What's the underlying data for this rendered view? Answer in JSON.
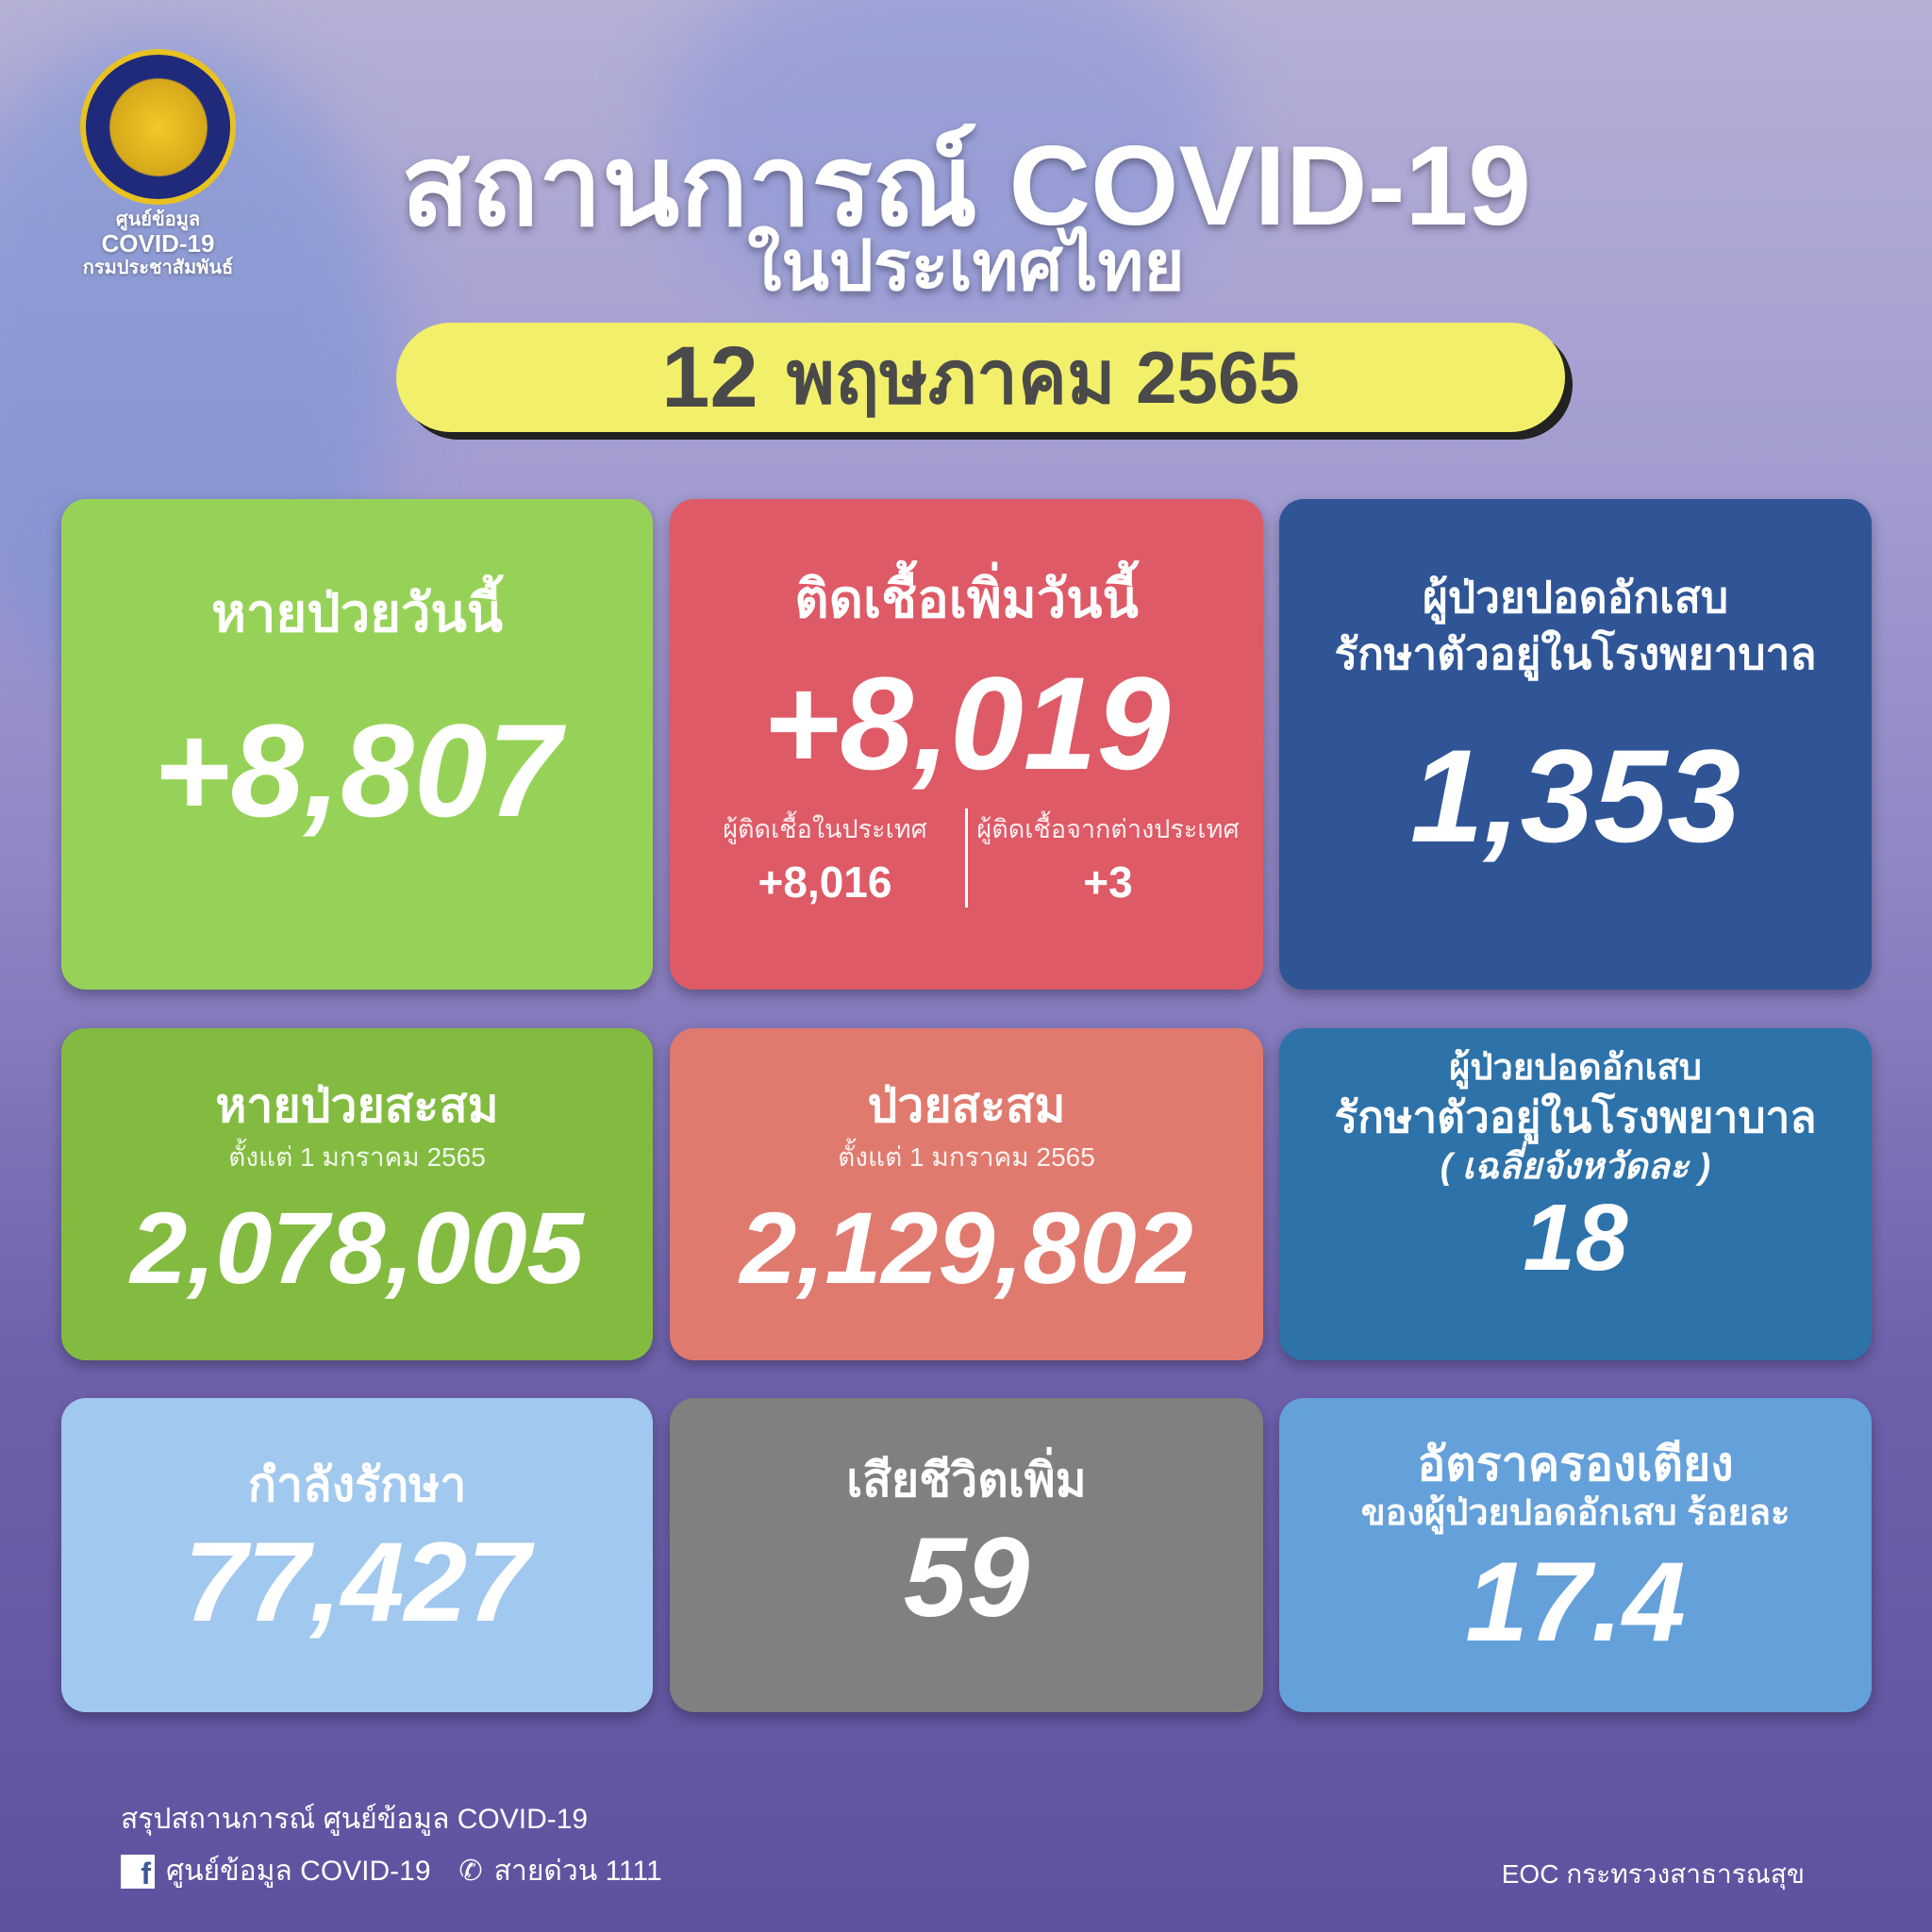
{
  "logo": {
    "line1": "ศูนย์ข้อมูล",
    "line2": "COVID-19",
    "line3": "กรมประชาสัมพันธ์"
  },
  "header": {
    "title": "สถานการณ์ COVID-19",
    "subtitle": "ในประเทศไทย",
    "date_day": "12",
    "date_rest": "พฤษภาคม 2565"
  },
  "cards": {
    "recovered_today": {
      "label": "หายป่วยวันนี้",
      "value": "+8,807",
      "color": "#97d258"
    },
    "new_cases": {
      "label": "ติดเชื้อเพิ่มวันนี้",
      "value": "+8,019",
      "domestic_label": "ผู้ติดเชื้อในประเทศ",
      "domestic_value": "+8,016",
      "imported_label": "ผู้ติดเชื้อจากต่างประเทศ",
      "imported_value": "+3",
      "color": "#de5a66"
    },
    "pneumonia": {
      "label1": "ผู้ป่วยปอดอักเสบ",
      "label2": "รักษาตัวอยู่ในโรงพยาบาล",
      "value": "1,353",
      "color": "#2f5596"
    },
    "recovered_total": {
      "label": "หายป่วยสะสม",
      "sub": "ตั้งแต่ 1 มกราคม 2565",
      "value": "2,078,005",
      "color": "#82bb40"
    },
    "cases_total": {
      "label": "ป่วยสะสม",
      "sub": "ตั้งแต่ 1 มกราคม 2565",
      "value": "2,129,802",
      "color": "#e07a6e"
    },
    "pneumonia_avg": {
      "label1": "ผู้ป่วยปอดอักเสบ",
      "label2": "รักษาตัวอยู่ในโรงพยาบาล",
      "label3": "( เฉลี่ยจังหวัดละ )",
      "value": "18",
      "color": "#2e72aa"
    },
    "in_treatment": {
      "label": "กำลังรักษา",
      "value": "77,427",
      "color": "#a1c8ee"
    },
    "deaths": {
      "label": "เสียชีวิตเพิ่ม",
      "value": "59",
      "color": "#808080"
    },
    "bed_rate": {
      "label1": "อัตราครองเตียง",
      "label2": "ของผู้ป่วยปอดอักเสบ ร้อยละ",
      "value": "17.4",
      "color": "#64a0da"
    }
  },
  "footer": {
    "summary": "สรุปสถานการณ์ ศูนย์ข้อมูล COVID-19",
    "facebook": "ศูนย์ข้อมูล COVID-19",
    "hotline": "สายด่วน 1111",
    "credit": "EOC กระทรวงสาธารณสุข",
    "icons": [
      "facebook-icon",
      "phone-icon"
    ]
  }
}
